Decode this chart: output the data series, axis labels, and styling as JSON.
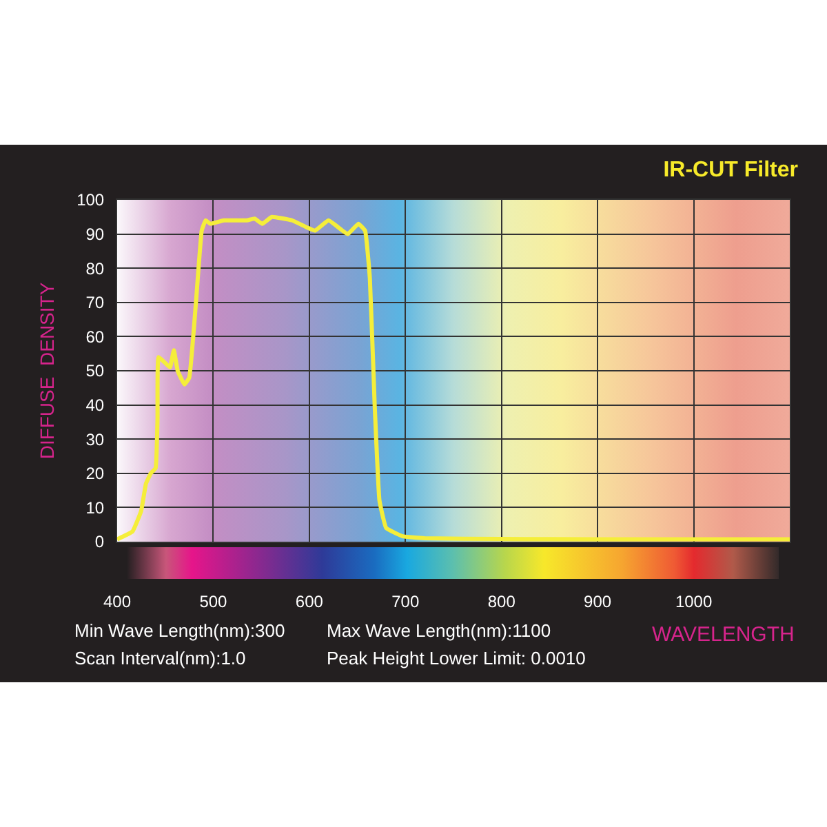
{
  "chart_data": {
    "type": "line",
    "title": "IR-CUT Filter",
    "xlabel": "WAVELENGTH",
    "ylabel": "DIFFUSE  DENSITY",
    "annotations": [
      "Min Wave Length(nm):300",
      "Max Wave Length(nm):1100",
      "Scan Interval(nm):1.0",
      "Peak Height Lower Limit: 0.0010"
    ],
    "x": [
      400,
      416,
      425,
      430,
      435,
      440,
      442,
      443,
      451,
      455,
      459,
      463,
      470,
      475,
      482,
      488,
      492,
      497,
      511,
      535,
      543,
      551,
      561,
      582,
      597,
      606,
      620,
      640,
      651,
      658,
      663,
      668,
      673,
      680,
      697,
      720,
      800,
      900,
      1000,
      1100
    ],
    "series": [
      {
        "color": "#f5ee3a",
        "values": [
          0.7,
          3,
          9,
          17,
          20,
          21.5,
          36,
          54,
          52,
          51,
          56,
          50,
          46,
          48,
          70,
          91,
          94,
          93,
          94,
          94,
          94.5,
          93,
          95,
          94,
          92,
          91,
          94,
          90,
          93,
          91,
          77,
          40,
          12,
          4,
          1.6,
          1,
          0.8,
          0.7,
          0.7,
          0.7
        ]
      }
    ],
    "xlim": [
      400,
      1100
    ],
    "xticks": [
      400,
      500,
      600,
      700,
      800,
      900,
      1000
    ],
    "ylim": [
      0,
      100
    ],
    "yticks": [
      0,
      10,
      20,
      30,
      40,
      50,
      60,
      70,
      80,
      90,
      100
    ],
    "grid": true,
    "marker": "none",
    "line_style": "solid"
  }
}
